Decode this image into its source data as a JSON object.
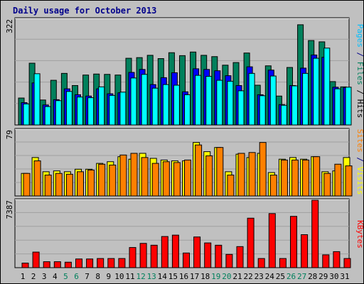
{
  "chart_data": [
    {
      "type": "bar",
      "title": "Daily usage for October 2013",
      "x": [
        "1",
        "2",
        "3",
        "4",
        "5",
        "6",
        "7",
        "8",
        "9",
        "10",
        "11",
        "12",
        "13",
        "14",
        "15",
        "16",
        "17",
        "18",
        "19",
        "20",
        "21",
        "22",
        "23",
        "24",
        "25",
        "26",
        "27",
        "28",
        "29",
        "30",
        "31"
      ],
      "weekend_days": [
        "5",
        "6",
        "12",
        "13",
        "19",
        "20",
        "26",
        "27"
      ],
      "ymax_label": "322",
      "ylim": [
        0,
        322
      ],
      "axis_label_parts": [
        "Pages",
        " / ",
        "Files",
        " / ",
        "Hits"
      ],
      "series": [
        {
          "name": "Hits",
          "color": "#00805c",
          "values": [
            82,
            188,
            76,
            136,
            157,
            120,
            152,
            155,
            154,
            152,
            203,
            205,
            212,
            202,
            220,
            211,
            222,
            212,
            208,
            182,
            190,
            219,
            121,
            180,
            88,
            175,
            305,
            257,
            253,
            132,
            116
          ]
        },
        {
          "name": "Files",
          "color": "#0000ff",
          "values": [
            68,
            128,
            61,
            77,
            110,
            92,
            88,
            110,
            95,
            98,
            160,
            169,
            123,
            144,
            159,
            101,
            171,
            169,
            165,
            150,
            120,
            177,
            92,
            167,
            62,
            120,
            173,
            213,
            206,
            115,
            114
          ]
        },
        {
          "name": "Pages",
          "color": "#00ffff",
          "values": [
            64,
            156,
            56,
            74,
            102,
            85,
            83,
            116,
            90,
            100,
            143,
            154,
            112,
            123,
            121,
            92,
            151,
            148,
            136,
            133,
            104,
            157,
            89,
            149,
            60,
            119,
            157,
            203,
            234,
            110,
            115
          ]
        }
      ]
    },
    {
      "type": "bar",
      "ymax_label": "79",
      "ylim": [
        0,
        79
      ],
      "axis_label_parts": [
        "Sites",
        " / ",
        "Visits"
      ],
      "series": [
        {
          "name": "Visits",
          "color": "#ffff00",
          "values": [
            27,
            46,
            29,
            30,
            29,
            32,
            32,
            39,
            41,
            47,
            44,
            51,
            45,
            43,
            42,
            42,
            64,
            53,
            58,
            29,
            50,
            46,
            51,
            28,
            44,
            46,
            44,
            47,
            29,
            30,
            46
          ]
        },
        {
          "name": "Sites",
          "color": "#ff8000",
          "values": [
            27,
            42,
            25,
            27,
            26,
            29,
            31,
            38,
            37,
            49,
            51,
            46,
            39,
            41,
            40,
            43,
            61,
            48,
            58,
            25,
            51,
            52,
            64,
            25,
            43,
            43,
            43,
            47,
            27,
            38,
            36
          ]
        }
      ]
    },
    {
      "type": "bar",
      "ymax_label": "7387",
      "ylim": [
        0,
        7387
      ],
      "axis_label_parts": [
        "KBytes"
      ],
      "series": [
        {
          "name": "KBytes",
          "color": "#ff0000",
          "values": [
            502,
            1707,
            653,
            653,
            602,
            954,
            954,
            1004,
            1004,
            1004,
            2209,
            2661,
            2460,
            3414,
            3565,
            1607,
            3364,
            2711,
            2460,
            1456,
            2309,
            5422,
            1004,
            5924,
            1004,
            5623,
            3615,
            7387,
            1406,
            1757,
            1004
          ]
        }
      ]
    }
  ]
}
